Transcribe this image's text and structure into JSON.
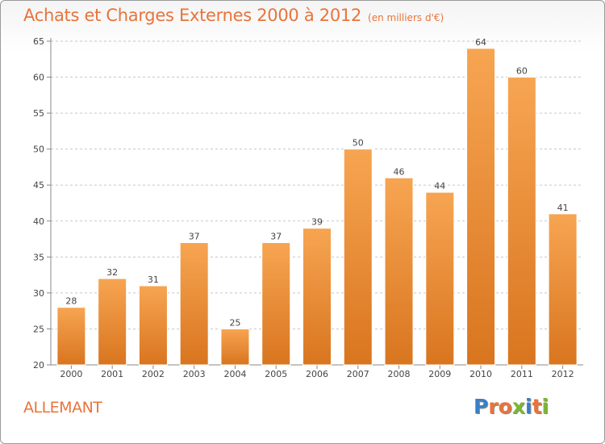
{
  "title": "Achats et Charges Externes 2000 à 2012",
  "subtitle": "(en milliers d'€)",
  "commune": "ALLEMANT",
  "logo": {
    "letters": [
      "P",
      "r",
      "o",
      "x",
      "i",
      "t",
      "i"
    ],
    "colors": [
      "#3a7fc4",
      "#e8743b",
      "#e8743b",
      "#7bb832",
      "#3a7fc4",
      "#e8743b",
      "#7bb832"
    ]
  },
  "colors": {
    "bar": "#f29a48",
    "bar_dark": "#d9751f",
    "accent": "#e8743b"
  },
  "chart_data": {
    "type": "bar",
    "categories": [
      "2000",
      "2001",
      "2002",
      "2003",
      "2004",
      "2005",
      "2006",
      "2007",
      "2008",
      "2009",
      "2010",
      "2011",
      "2012"
    ],
    "values": [
      28,
      32,
      31,
      37,
      25,
      37,
      39,
      50,
      46,
      44,
      64,
      60,
      41
    ],
    "ylim": [
      20,
      65
    ],
    "yticks": [
      20,
      25,
      30,
      35,
      40,
      45,
      50,
      55,
      60,
      65
    ],
    "grid": "horizontal dashed",
    "xlabel": "",
    "ylabel": ""
  }
}
